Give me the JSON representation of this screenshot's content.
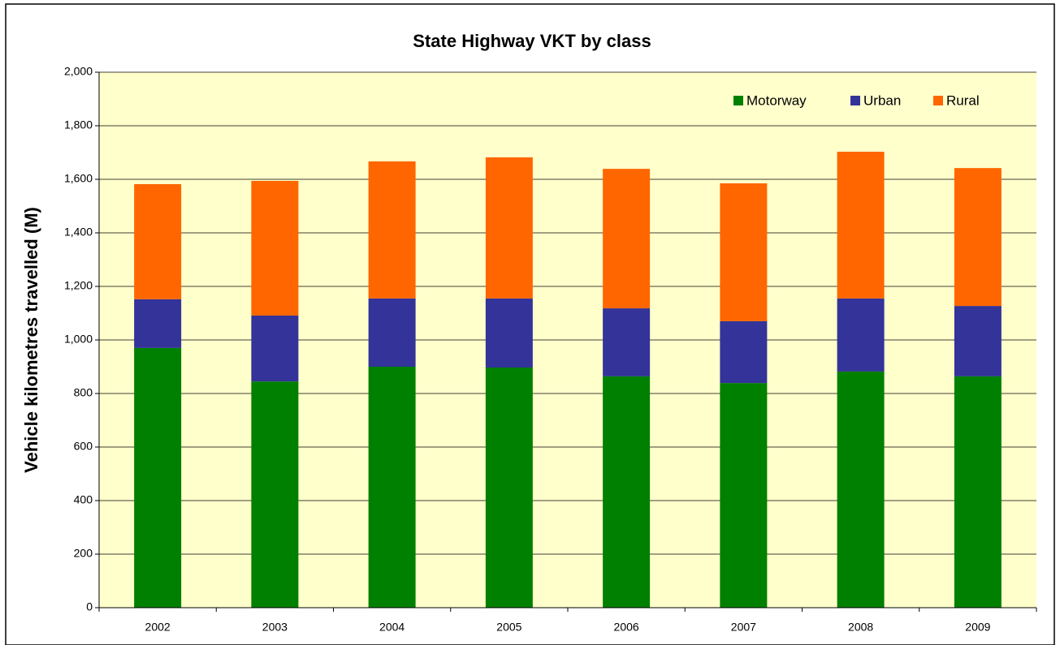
{
  "chart_data": {
    "type": "stacked_bar",
    "title": "State Highway VKT by class",
    "y_label": "Vehicle kilometres travelled (M)",
    "categories": [
      "2002",
      "2003",
      "2004",
      "2005",
      "2006",
      "2007",
      "2008",
      "2009"
    ],
    "series": [
      {
        "name": "Motorway",
        "color": "#008000",
        "values": [
          970,
          845,
          900,
          897,
          864,
          839,
          882,
          864
        ]
      },
      {
        "name": "Urban",
        "color": "#333399",
        "values": [
          182,
          246,
          255,
          258,
          254,
          231,
          273,
          263
        ]
      },
      {
        "name": "Rural",
        "color": "#ff6600",
        "values": [
          430,
          503,
          512,
          527,
          521,
          515,
          548,
          515
        ]
      }
    ],
    "ylim": [
      0,
      2000
    ],
    "yticks": [
      0,
      200,
      400,
      600,
      800,
      {
        "value": 1000,
        "label": "1,000"
      },
      {
        "value": 1200,
        "label": "1,200"
      },
      {
        "value": 1400,
        "label": "1,400"
      },
      {
        "value": 1600,
        "label": "1,600"
      },
      {
        "value": 1800,
        "label": "1,800"
      },
      {
        "value": 2000,
        "label": "2,000"
      }
    ],
    "grid": true,
    "legend": "top-right"
  }
}
